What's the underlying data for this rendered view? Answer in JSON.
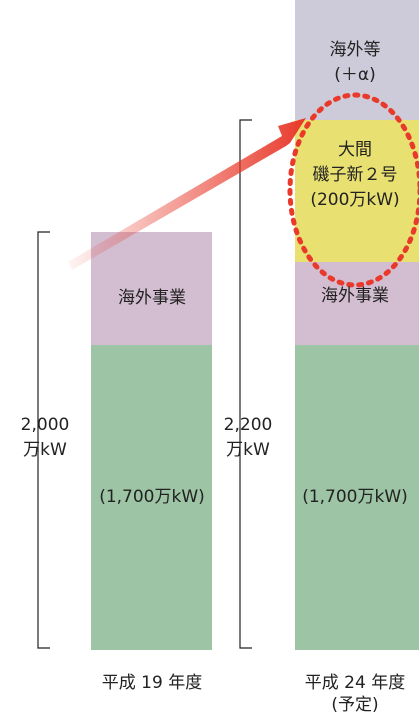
{
  "bars": [
    {
      "label": [
        "平成 19 年度"
      ],
      "total": [
        "2,000",
        "万kW"
      ],
      "segments": [
        {
          "name": "overseas",
          "lines": [
            "海外事業"
          ]
        },
        {
          "name": "domestic",
          "lines": [
            "(1,700万kW)"
          ]
        }
      ]
    },
    {
      "label": [
        "平成 24 年度",
        "(予定)"
      ],
      "total": [
        "2,200",
        "万kW"
      ],
      "segments": [
        {
          "name": "overseas-plus",
          "lines": [
            "海外等",
            "(＋α)"
          ]
        },
        {
          "name": "new-plants",
          "lines": [
            "大間",
            "磯子新２号",
            "(200万kW)"
          ]
        },
        {
          "name": "overseas",
          "lines": [
            "海外事業"
          ]
        },
        {
          "name": "domestic",
          "lines": [
            "(1,700万kW)"
          ]
        }
      ]
    }
  ]
}
